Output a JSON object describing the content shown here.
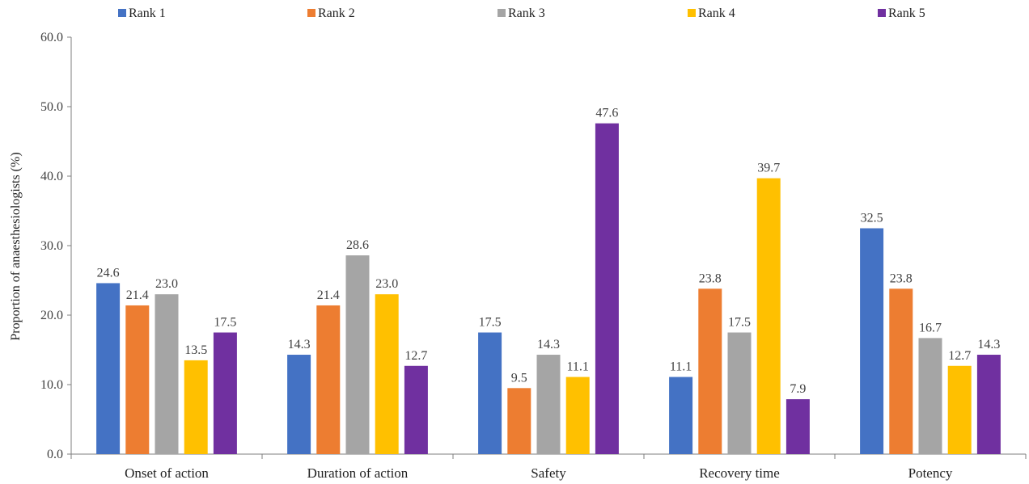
{
  "chart_data": {
    "type": "bar",
    "ylabel": "Proportion of anaesthesiologists (%)",
    "xlabel": "",
    "ylim": [
      0,
      60
    ],
    "yticks": [
      "0.0",
      "10.0",
      "20.0",
      "30.0",
      "40.0",
      "50.0",
      "60.0"
    ],
    "grid": false,
    "legend_position": "top",
    "categories": [
      "Onset of action",
      "Duration of action",
      "Safety",
      "Recovery time",
      "Potency"
    ],
    "series": [
      {
        "name": "Rank 1",
        "color": "#4472C4",
        "values": [
          24.6,
          14.3,
          17.5,
          11.1,
          32.5
        ]
      },
      {
        "name": "Rank 2",
        "color": "#ED7D31",
        "values": [
          21.4,
          21.4,
          9.5,
          23.8,
          23.8
        ]
      },
      {
        "name": "Rank 3",
        "color": "#A5A5A5",
        "values": [
          23.0,
          28.6,
          14.3,
          17.5,
          16.7
        ]
      },
      {
        "name": "Rank 4",
        "color": "#FFC000",
        "values": [
          13.5,
          23.0,
          11.1,
          39.7,
          12.7
        ]
      },
      {
        "name": "Rank 5",
        "color": "#7030A0",
        "values": [
          17.5,
          12.7,
          47.6,
          7.9,
          14.3
        ]
      }
    ]
  }
}
